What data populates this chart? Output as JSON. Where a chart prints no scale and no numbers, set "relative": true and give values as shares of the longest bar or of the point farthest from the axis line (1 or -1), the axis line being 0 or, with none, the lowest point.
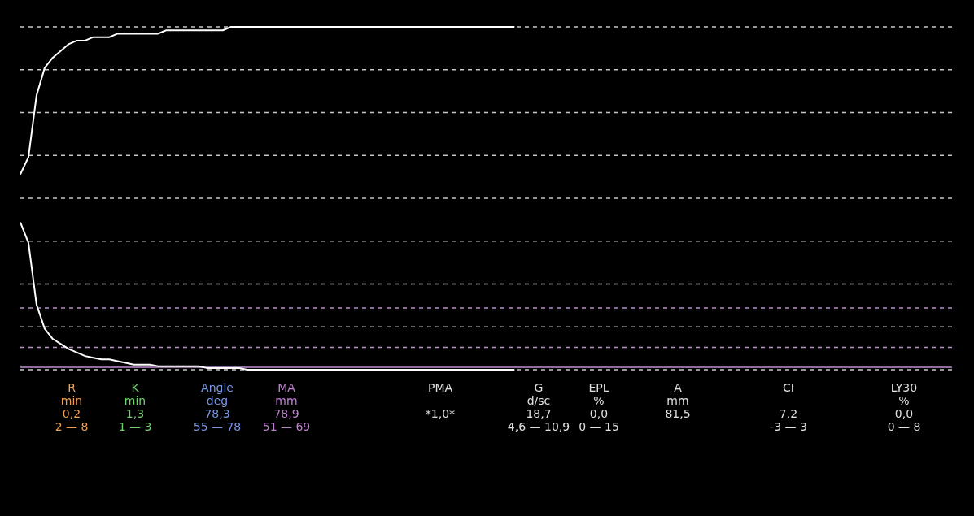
{
  "chart_data": {
    "type": "line",
    "relative": true,
    "line_style": "solid",
    "categories": [
      null,
      null,
      null,
      null,
      null,
      null,
      null,
      null,
      null,
      null,
      null,
      null,
      null,
      null,
      null,
      null,
      null,
      null,
      null,
      null,
      null,
      null,
      null,
      null,
      null,
      null,
      null,
      null,
      null,
      null,
      null,
      null,
      null,
      null,
      null,
      null,
      null,
      null,
      null,
      null,
      null,
      null,
      null,
      null,
      null,
      null,
      null,
      null,
      null,
      null,
      null,
      null,
      null,
      null,
      null,
      null,
      null,
      null,
      null,
      null,
      null,
      null,
      null,
      null,
      null,
      null,
      null,
      null,
      null,
      null,
      null,
      null,
      null,
      null,
      null,
      null,
      null,
      null,
      null,
      null,
      null,
      null,
      null,
      null,
      null,
      null,
      null,
      null,
      null,
      null,
      null,
      null,
      null,
      null,
      null,
      null,
      null,
      null,
      null,
      null,
      null,
      null,
      null,
      null,
      null,
      null,
      null,
      null,
      null,
      null,
      null,
      null,
      null,
      null,
      null
    ],
    "series": [
      {
        "color": "#ffffff",
        "values": [
          0.57,
          0.62,
          0.8,
          0.88,
          0.91,
          0.93,
          0.95,
          0.96,
          0.96,
          0.97,
          0.97,
          0.97,
          0.98,
          0.98,
          0.98,
          0.98,
          0.98,
          0.98,
          0.99,
          0.99,
          0.99,
          0.99,
          0.99,
          0.99,
          0.99,
          0.99,
          1,
          1,
          1,
          1,
          1,
          1,
          1,
          1,
          1,
          1,
          1,
          1,
          1,
          1,
          1,
          1,
          1,
          1,
          1,
          1,
          1,
          1,
          1,
          1,
          1,
          1,
          1,
          1,
          1,
          1,
          1,
          1,
          1,
          1,
          1,
          1,
          null,
          null,
          null,
          null,
          null,
          null,
          null,
          null,
          null,
          null,
          null,
          null,
          null,
          null,
          null,
          null,
          null,
          null,
          null,
          null,
          null,
          null,
          null,
          null,
          null,
          null,
          null,
          null,
          null,
          null,
          null,
          null,
          null,
          null,
          null,
          null,
          null,
          null,
          null,
          null,
          null,
          null,
          null,
          null,
          null,
          null,
          null,
          null,
          null,
          null,
          null,
          null,
          null
        ]
      },
      {
        "color": "#ffffff",
        "values": [
          0.43,
          0.37,
          0.19,
          0.12,
          0.09,
          0.075,
          0.06,
          0.05,
          0.04,
          0.035,
          0.03,
          0.03,
          0.025,
          0.02,
          0.015,
          0.015,
          0.015,
          0.01,
          0.01,
          0.01,
          0.01,
          0.01,
          0.01,
          0.005,
          0.005,
          0.005,
          0.005,
          0.005,
          0,
          0,
          0,
          0,
          0,
          0,
          0,
          0,
          0,
          0,
          0,
          0,
          0,
          0,
          0,
          0,
          0,
          0,
          0,
          0,
          0,
          0,
          0,
          0,
          0,
          0,
          0,
          0,
          0,
          0,
          0,
          0,
          0,
          0,
          null,
          null,
          null,
          null,
          null,
          null,
          null,
          null,
          null,
          null,
          null,
          null,
          null,
          null,
          null,
          null,
          null,
          null,
          null,
          null,
          null,
          null,
          null,
          null,
          null,
          null,
          null,
          null,
          null,
          null,
          null,
          null,
          null,
          null,
          null,
          null,
          null,
          null,
          null,
          null,
          null,
          null,
          null,
          null,
          null,
          null,
          null,
          null,
          null,
          null,
          null,
          null,
          null
        ]
      }
    ],
    "ref_lines": [
      {
        "axis": "y",
        "value": 1,
        "color": "#c8c8c8",
        "line_style": "dashed"
      },
      {
        "axis": "y",
        "value": 0.875,
        "color": "#c8c8c8",
        "line_style": "dashed"
      },
      {
        "axis": "y",
        "value": 0.75,
        "color": "#c8c8c8",
        "line_style": "dashed"
      },
      {
        "axis": "y",
        "value": 0.625,
        "color": "#c8c8c8",
        "line_style": "dashed"
      },
      {
        "axis": "y",
        "value": 0.5,
        "color": "#c8c8c8",
        "line_style": "dashed"
      },
      {
        "axis": "y",
        "value": 0.375,
        "color": "#c8c8c8",
        "line_style": "dashed"
      },
      {
        "axis": "y",
        "value": 0.25,
        "color": "#c8c8c8",
        "line_style": "dashed"
      },
      {
        "axis": "y",
        "value": 0.125,
        "color": "#c8c8c8",
        "line_style": "dashed"
      },
      {
        "axis": "y",
        "value": 0,
        "color": "#c8c8c8",
        "line_style": "dashed"
      },
      {
        "axis": "y",
        "value": 0.18,
        "color": "#c090d0",
        "line_style": "dashed"
      },
      {
        "axis": "y",
        "value": 0.065,
        "color": "#c090d0",
        "line_style": "dashed"
      },
      {
        "axis": "y",
        "value": 0.007,
        "color": "#c090d0",
        "line_style": "solid"
      }
    ],
    "annotations": [
      "R\nmin\n0,2\n2 — 8",
      "K\nmin\n1,3\n1 — 3",
      "Angle\ndeg\n78,3\n55 — 78",
      "MA\nmm\n78,9\n51 — 69",
      "PMA\n\n*1,0*\n",
      "G\nd/sc\n18,7\n4,6 — 10,9",
      "EPL\n%\n0,0\n0 — 15",
      "A\nmm\n81,5\n",
      "CI\n\n7,2\n-3 — 3",
      "LY30\n%\n0,0\n0 — 8"
    ]
  }
}
